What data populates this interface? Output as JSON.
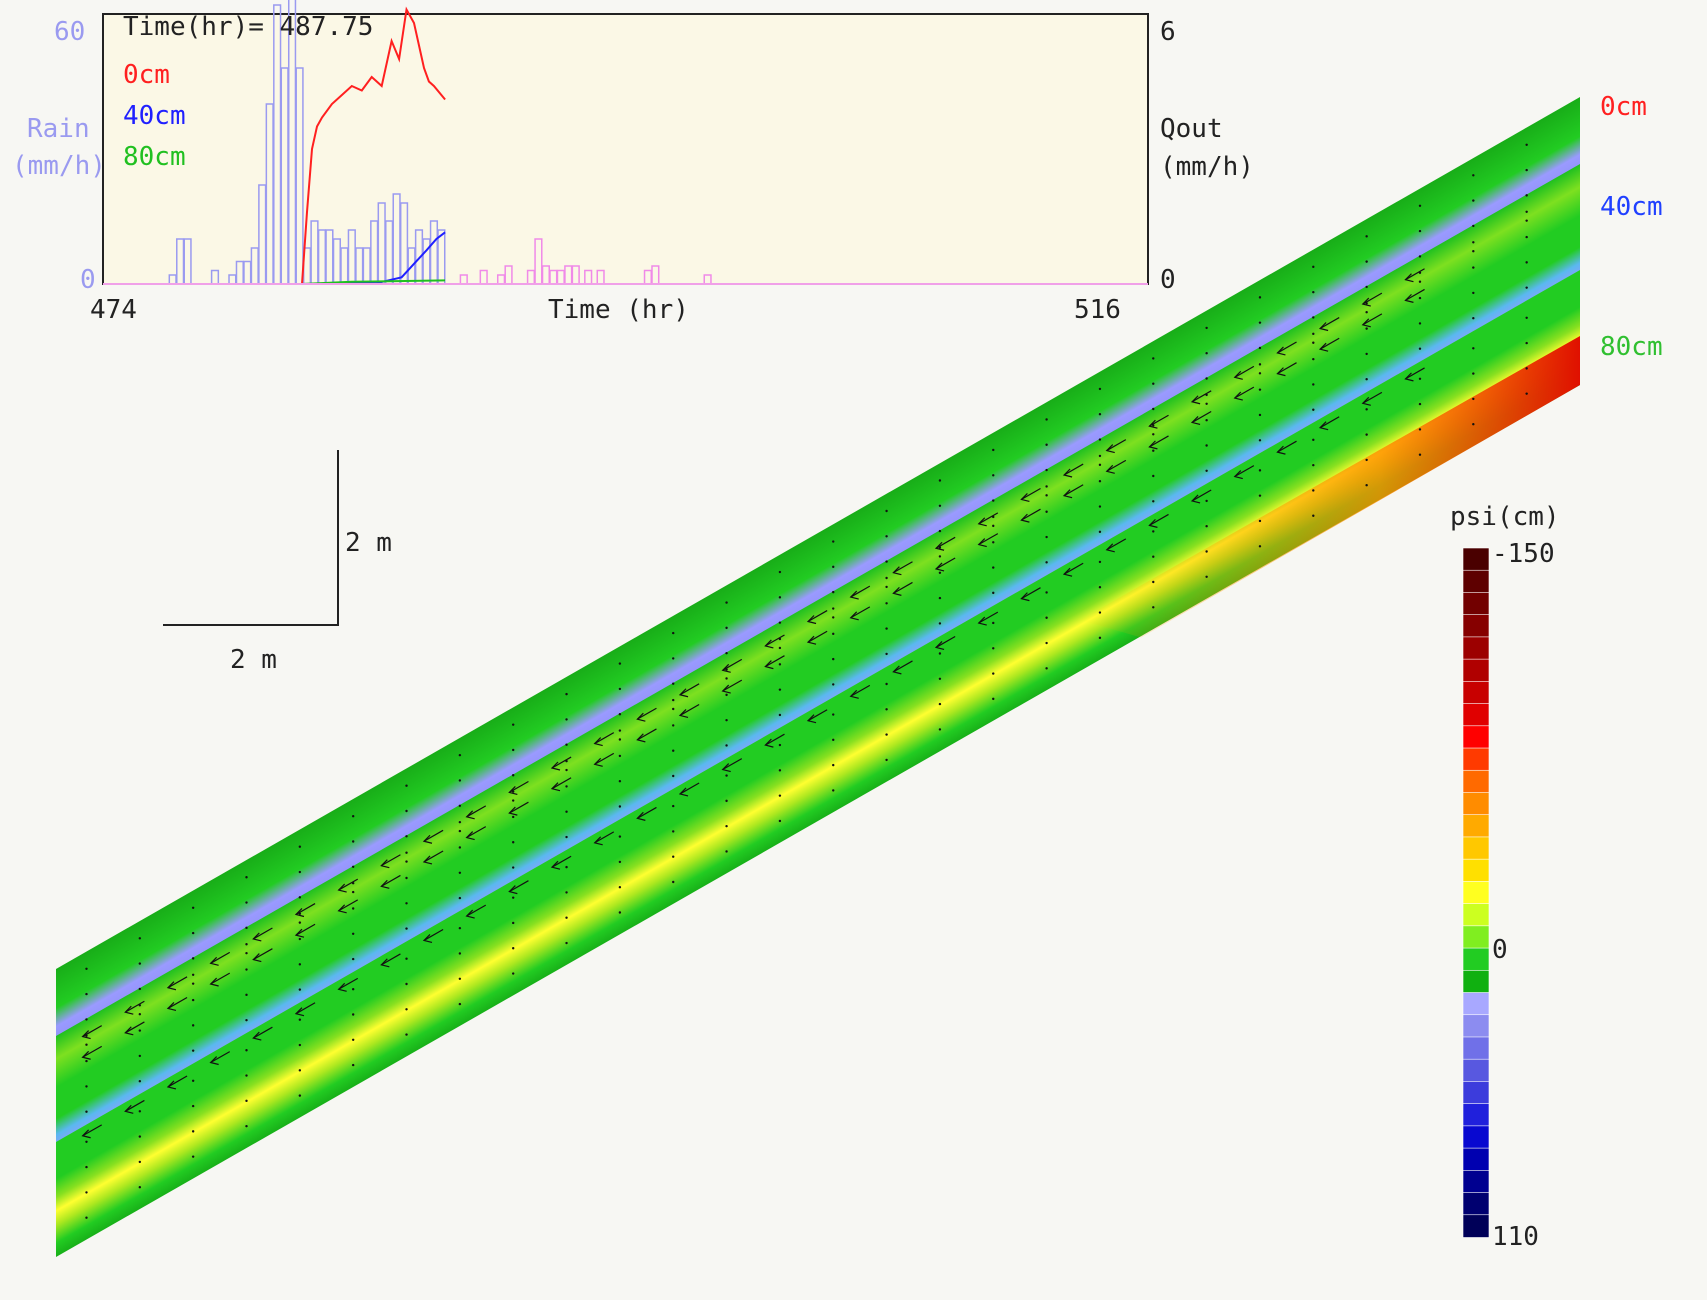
{
  "chart_data": [
    {
      "type": "bar+line",
      "title": "Time(hr)= 487.75",
      "xlabel": "Time (hr)",
      "xlim": [
        474,
        516
      ],
      "x_tick_labels": [
        "474",
        "516"
      ],
      "left_axis": {
        "label_line1": "Rain",
        "label_line2": "(mm/h)",
        "ylim": [
          0,
          60
        ],
        "tick_labels": [
          "60",
          "0"
        ],
        "color": "#9a9af0"
      },
      "right_axis": {
        "label_line1": "Qout",
        "label_line2": "(mm/h)",
        "ylim": [
          0,
          6
        ],
        "tick_labels": [
          "6",
          "0"
        ]
      },
      "background": "#fbf8e6",
      "rain_past": {
        "color": "#9a9af0",
        "x": [
          476.8,
          477.1,
          477.4,
          478.5,
          479.2,
          479.5,
          479.8,
          480.1,
          480.4,
          480.7,
          481.0,
          481.3,
          481.6,
          481.9,
          482.2,
          482.5,
          482.8,
          483.1,
          483.4,
          483.7,
          484.0,
          484.3,
          484.6,
          484.9,
          485.2,
          485.5,
          485.8,
          486.1,
          486.4,
          486.7,
          487.0,
          487.3,
          487.6
        ],
        "values": [
          2,
          10,
          10,
          3,
          2,
          5,
          5,
          8,
          22,
          40,
          62,
          48,
          82,
          48,
          8,
          14,
          12,
          12,
          10,
          8,
          12,
          8,
          8,
          14,
          18,
          14,
          20,
          18,
          8,
          12,
          10,
          14,
          12
        ]
      },
      "rain_future": {
        "color": "#f08ae8",
        "x": [
          488.5,
          489.3,
          490.0,
          490.3,
          491.2,
          491.5,
          491.8,
          492.1,
          492.4,
          492.7,
          493.0,
          493.5,
          494.0,
          495.9,
          496.2,
          498.3
        ],
        "values": [
          2,
          3,
          2,
          4,
          3,
          10,
          4,
          3,
          3,
          4,
          4,
          3,
          3,
          3,
          4,
          2
        ]
      },
      "series": [
        {
          "name": "0cm",
          "color": "#ff2020",
          "x": [
            482.0,
            482.2,
            482.4,
            482.6,
            482.8,
            483.2,
            483.6,
            484.0,
            484.4,
            484.8,
            485.2,
            485.6,
            485.9,
            486.2,
            486.5,
            486.7,
            486.9,
            487.1,
            487.3,
            487.75
          ],
          "values": [
            0.0,
            1.6,
            3.0,
            3.5,
            3.7,
            4.0,
            4.2,
            4.4,
            4.3,
            4.6,
            4.4,
            5.4,
            5.0,
            6.1,
            5.8,
            5.3,
            4.8,
            4.5,
            4.4,
            4.1
          ]
        },
        {
          "name": "40cm",
          "color": "#2020ff",
          "x": [
            474,
            482,
            485,
            486,
            486.5,
            487,
            487.4,
            487.75
          ],
          "values": [
            0,
            0,
            0.02,
            0.15,
            0.45,
            0.75,
            1.0,
            1.15
          ]
        },
        {
          "name": "80cm",
          "color": "#20c020",
          "x": [
            474,
            482,
            484,
            487.75
          ],
          "values": [
            0,
            0,
            0.05,
            0.08
          ]
        }
      ]
    },
    {
      "type": "heatmap",
      "title": "psi(cm)",
      "colorbar_ticks": [
        "-150",
        "0",
        "110"
      ],
      "colorbar_range": [
        -150,
        110
      ],
      "depth_labels": [
        {
          "label": "0cm",
          "color": "#ff2020"
        },
        {
          "label": "40cm",
          "color": "#2040ff"
        },
        {
          "label": "80cm",
          "color": "#30c030"
        }
      ]
    }
  ],
  "scale_bar": {
    "vertical_label": "2 m",
    "horizontal_label": "2 m"
  },
  "colorbar_colors": [
    "#4a0000",
    "#5e0000",
    "#720000",
    "#860000",
    "#9c0000",
    "#b00000",
    "#c80000",
    "#e00000",
    "#ff0000",
    "#ff3a00",
    "#ff6a00",
    "#ff8c00",
    "#ffaa00",
    "#ffc800",
    "#ffe000",
    "#ffff20",
    "#ccff20",
    "#80ee20",
    "#22cc22",
    "#10b010",
    "#a8a8ff",
    "#8c8cf0",
    "#7070e8",
    "#5858e0",
    "#3c3cdc",
    "#2020dc",
    "#0808d0",
    "#0000b0",
    "#000090",
    "#000070",
    "#000058"
  ]
}
